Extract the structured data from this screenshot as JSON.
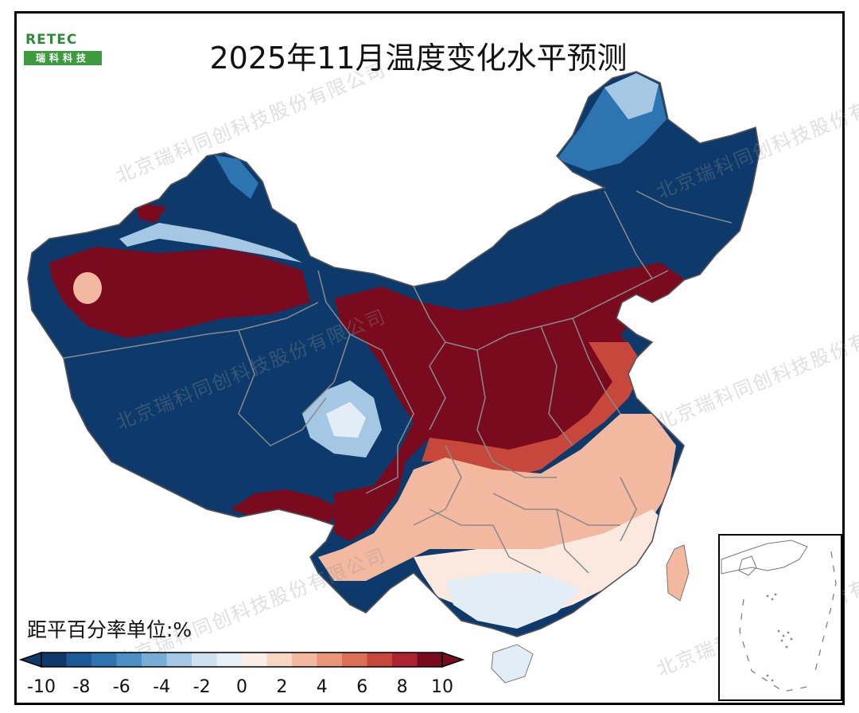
{
  "title": "2025年11月温度变化水平预测",
  "logo": {
    "word": "RETEC",
    "sub": "瑞科科技"
  },
  "unit_label": "距平百分率单位:%",
  "watermark": "北京瑞科同创科技股份有限公司",
  "colorbar": {
    "tick_labels": [
      "-10",
      "-8",
      "-6",
      "-4",
      "-2",
      "0",
      "2",
      "4",
      "6",
      "8",
      "10"
    ],
    "colors": [
      "#0d3a6b",
      "#1b5a94",
      "#2d74b0",
      "#4b8fc4",
      "#76acd6",
      "#a4c8e3",
      "#cfe1ef",
      "#eaf1f6",
      "#fbeee6",
      "#f7d6c5",
      "#f2b8a0",
      "#ea9478",
      "#dd6f56",
      "#c8473c",
      "#ad2430",
      "#7a0a1e"
    ]
  },
  "legend": {
    "min": -10,
    "max": 10,
    "units": "%"
  },
  "map_colors": {
    "deep_blue": "#0d3a6b",
    "blue_mid": "#2d74b0",
    "blue_light": "#a4c8e3",
    "deep_red": "#7a0a1e",
    "red_mid": "#c8473c",
    "salmon": "#f2b8a0",
    "pale": "#fbe9df",
    "pale_blue": "#e3edf5",
    "border": "#8a8a8a"
  }
}
